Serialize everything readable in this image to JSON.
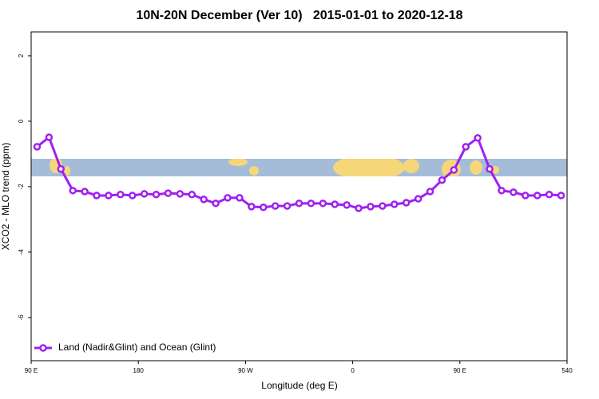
{
  "chart_data": {
    "type": "line",
    "title": "10N-20N December (Ver 10)   2015-01-01 to 2020-12-18",
    "x_label": "Longitude (deg E)",
    "y_label": "XCO2 - MLO trend (ppm)",
    "x": [
      95,
      105,
      115,
      125,
      135,
      145,
      155,
      165,
      175,
      185,
      195,
      205,
      215,
      225,
      235,
      245,
      255,
      265,
      275,
      285,
      295,
      305,
      315,
      325,
      335,
      345,
      355,
      365,
      375,
      385,
      395,
      405,
      415,
      425,
      435,
      445,
      455,
      465,
      475,
      485,
      495,
      505,
      515,
      525,
      535
    ],
    "series": [
      {
        "name": "Land (Nadir&Glint) and Ocean (Glint)",
        "color": "#a020f0",
        "values": [
          -0.78,
          -0.49,
          -1.46,
          -2.12,
          -2.15,
          -2.27,
          -2.27,
          -2.24,
          -2.27,
          -2.22,
          -2.24,
          -2.2,
          -2.22,
          -2.24,
          -2.39,
          -2.51,
          -2.34,
          -2.34,
          -2.61,
          -2.63,
          -2.59,
          -2.59,
          -2.51,
          -2.51,
          -2.51,
          -2.54,
          -2.56,
          -2.66,
          -2.61,
          -2.59,
          -2.54,
          -2.49,
          -2.37,
          -2.15,
          -1.8,
          -1.49,
          -0.78,
          -0.51,
          -1.46,
          -2.12,
          -2.17,
          -2.27,
          -2.27,
          -2.24,
          -2.27
        ]
      }
    ],
    "xlim": [
      90,
      540
    ],
    "xticks": [
      {
        "value": 90,
        "label": "90 E"
      },
      180,
      {
        "value": 270,
        "label": "90 W"
      },
      {
        "value": 360,
        "label": "0"
      },
      {
        "value": 450,
        "label": "90 E"
      },
      540
    ],
    "ylim": [
      -7.32,
      2.73
    ],
    "yticks": [
      2,
      0,
      -2,
      -4,
      -6
    ],
    "legend": "bottom-left"
  }
}
